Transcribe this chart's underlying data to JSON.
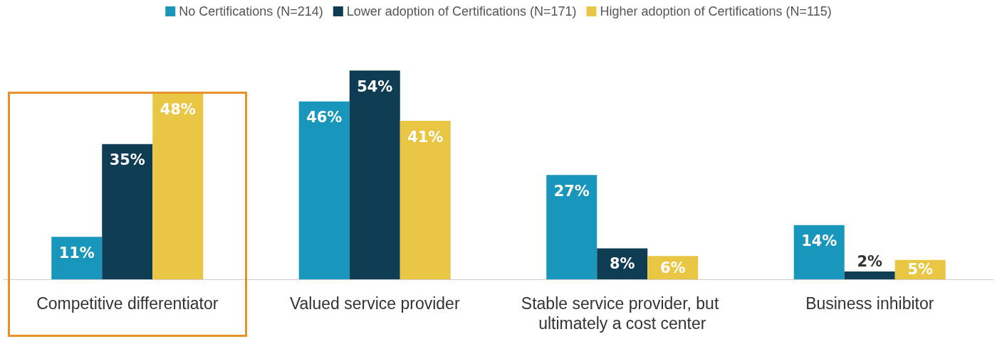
{
  "chart_data": {
    "type": "bar",
    "categories": [
      "Competitive differentiator",
      "Valued service provider",
      "Stable service provider, but ultimately a cost center",
      "Business inhibitor"
    ],
    "series": [
      {
        "name": "No Certifications (N=214)",
        "color": "#1896bb",
        "values": [
          11,
          46,
          27,
          14
        ],
        "value_labels": [
          "11%",
          "46%",
          "27%",
          "14%"
        ]
      },
      {
        "name": "Lower adoption of Certifications (N=171)",
        "color": "#0e3d53",
        "values": [
          35,
          54,
          8,
          2
        ],
        "value_labels": [
          "35%",
          "54%",
          "8%",
          "2%"
        ]
      },
      {
        "name": "Higher adoption of Certifications (N=115)",
        "color": "#e9c744",
        "values": [
          48,
          41,
          6,
          5
        ],
        "value_labels": [
          "48%",
          "41%",
          "6%",
          "5%"
        ]
      }
    ],
    "legend": "top",
    "grid": false
  }
}
